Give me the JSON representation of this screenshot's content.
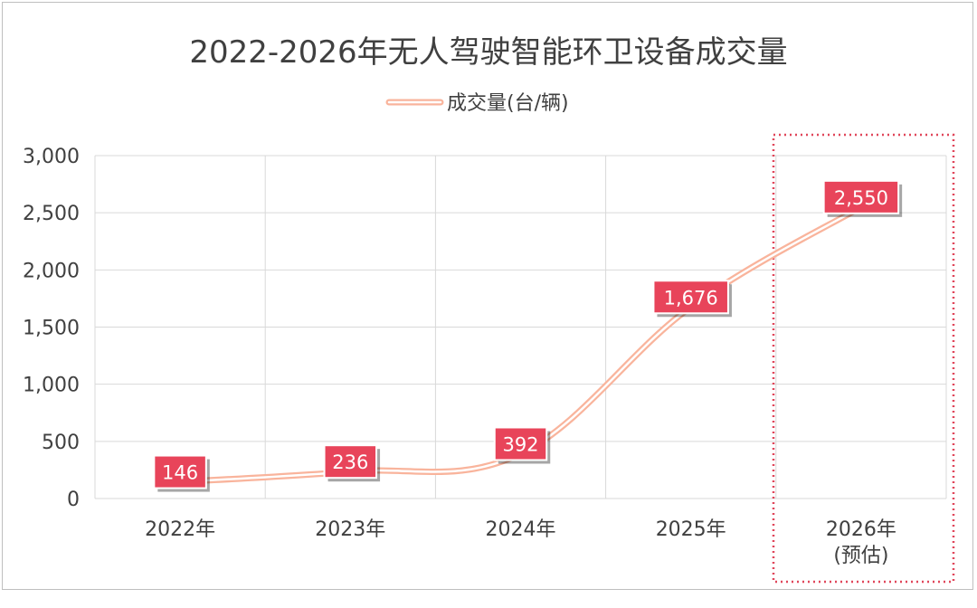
{
  "chart_data": {
    "type": "line",
    "title": "2022-2026年无人驾驶智能环卫设备成交量",
    "categories": [
      "2022年",
      "2023年",
      "2024年",
      "2025年",
      "2026年\n(预估)"
    ],
    "series": [
      {
        "name": "成交量(台/辆)",
        "values": [
          146,
          236,
          392,
          1676,
          2550
        ],
        "data_labels": [
          "146",
          "236",
          "392",
          "1,676",
          "2,550"
        ]
      }
    ],
    "y_ticks": [
      "0",
      "500",
      "1,000",
      "1,500",
      "2,000",
      "2,500",
      "3,000"
    ],
    "ylim": [
      0,
      3000
    ],
    "grid": true,
    "legend_position": "top",
    "highlight": "2026年\n(预估)",
    "colors": {
      "line": "#f9b49c",
      "label_bg": "#e8445a",
      "highlight_border": "#e0465a",
      "grid": "#d9d9d9",
      "text": "#404040"
    }
  }
}
